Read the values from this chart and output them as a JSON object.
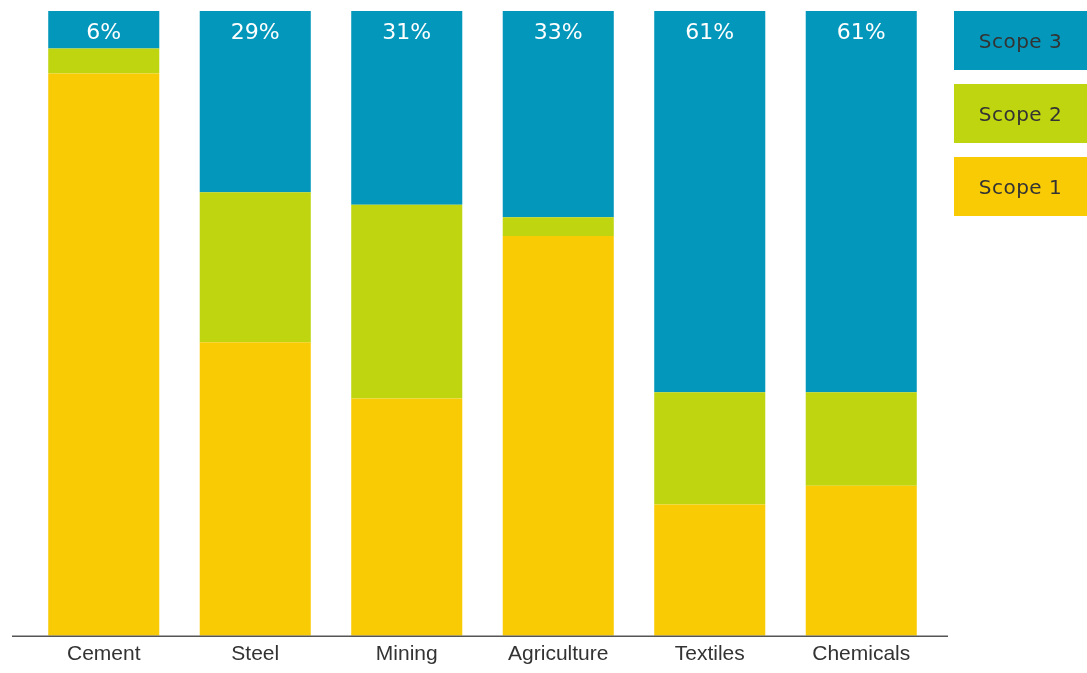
{
  "chart_data": {
    "type": "bar",
    "stacked": true,
    "categories": [
      "Cement",
      "Steel",
      "Mining",
      "Agriculture",
      "Textiles",
      "Chemicals"
    ],
    "ylim": [
      0,
      100
    ],
    "tick_labels": "x",
    "grid": false,
    "legend": "top right",
    "series": [
      {
        "name": "Scope 1",
        "color": "#f9cb05",
        "values": [
          90,
          47,
          38,
          64,
          21,
          24
        ]
      },
      {
        "name": "Scope 2",
        "color": "#bed50f",
        "values": [
          4,
          24,
          31,
          3,
          18,
          15
        ]
      },
      {
        "name": "Scope 3",
        "color": "#0397bb",
        "values": [
          6,
          29,
          31,
          33,
          61,
          61
        ],
        "value_labels": [
          "6%",
          "29%",
          "31%",
          "33%",
          "61%",
          "61%"
        ]
      }
    ]
  }
}
